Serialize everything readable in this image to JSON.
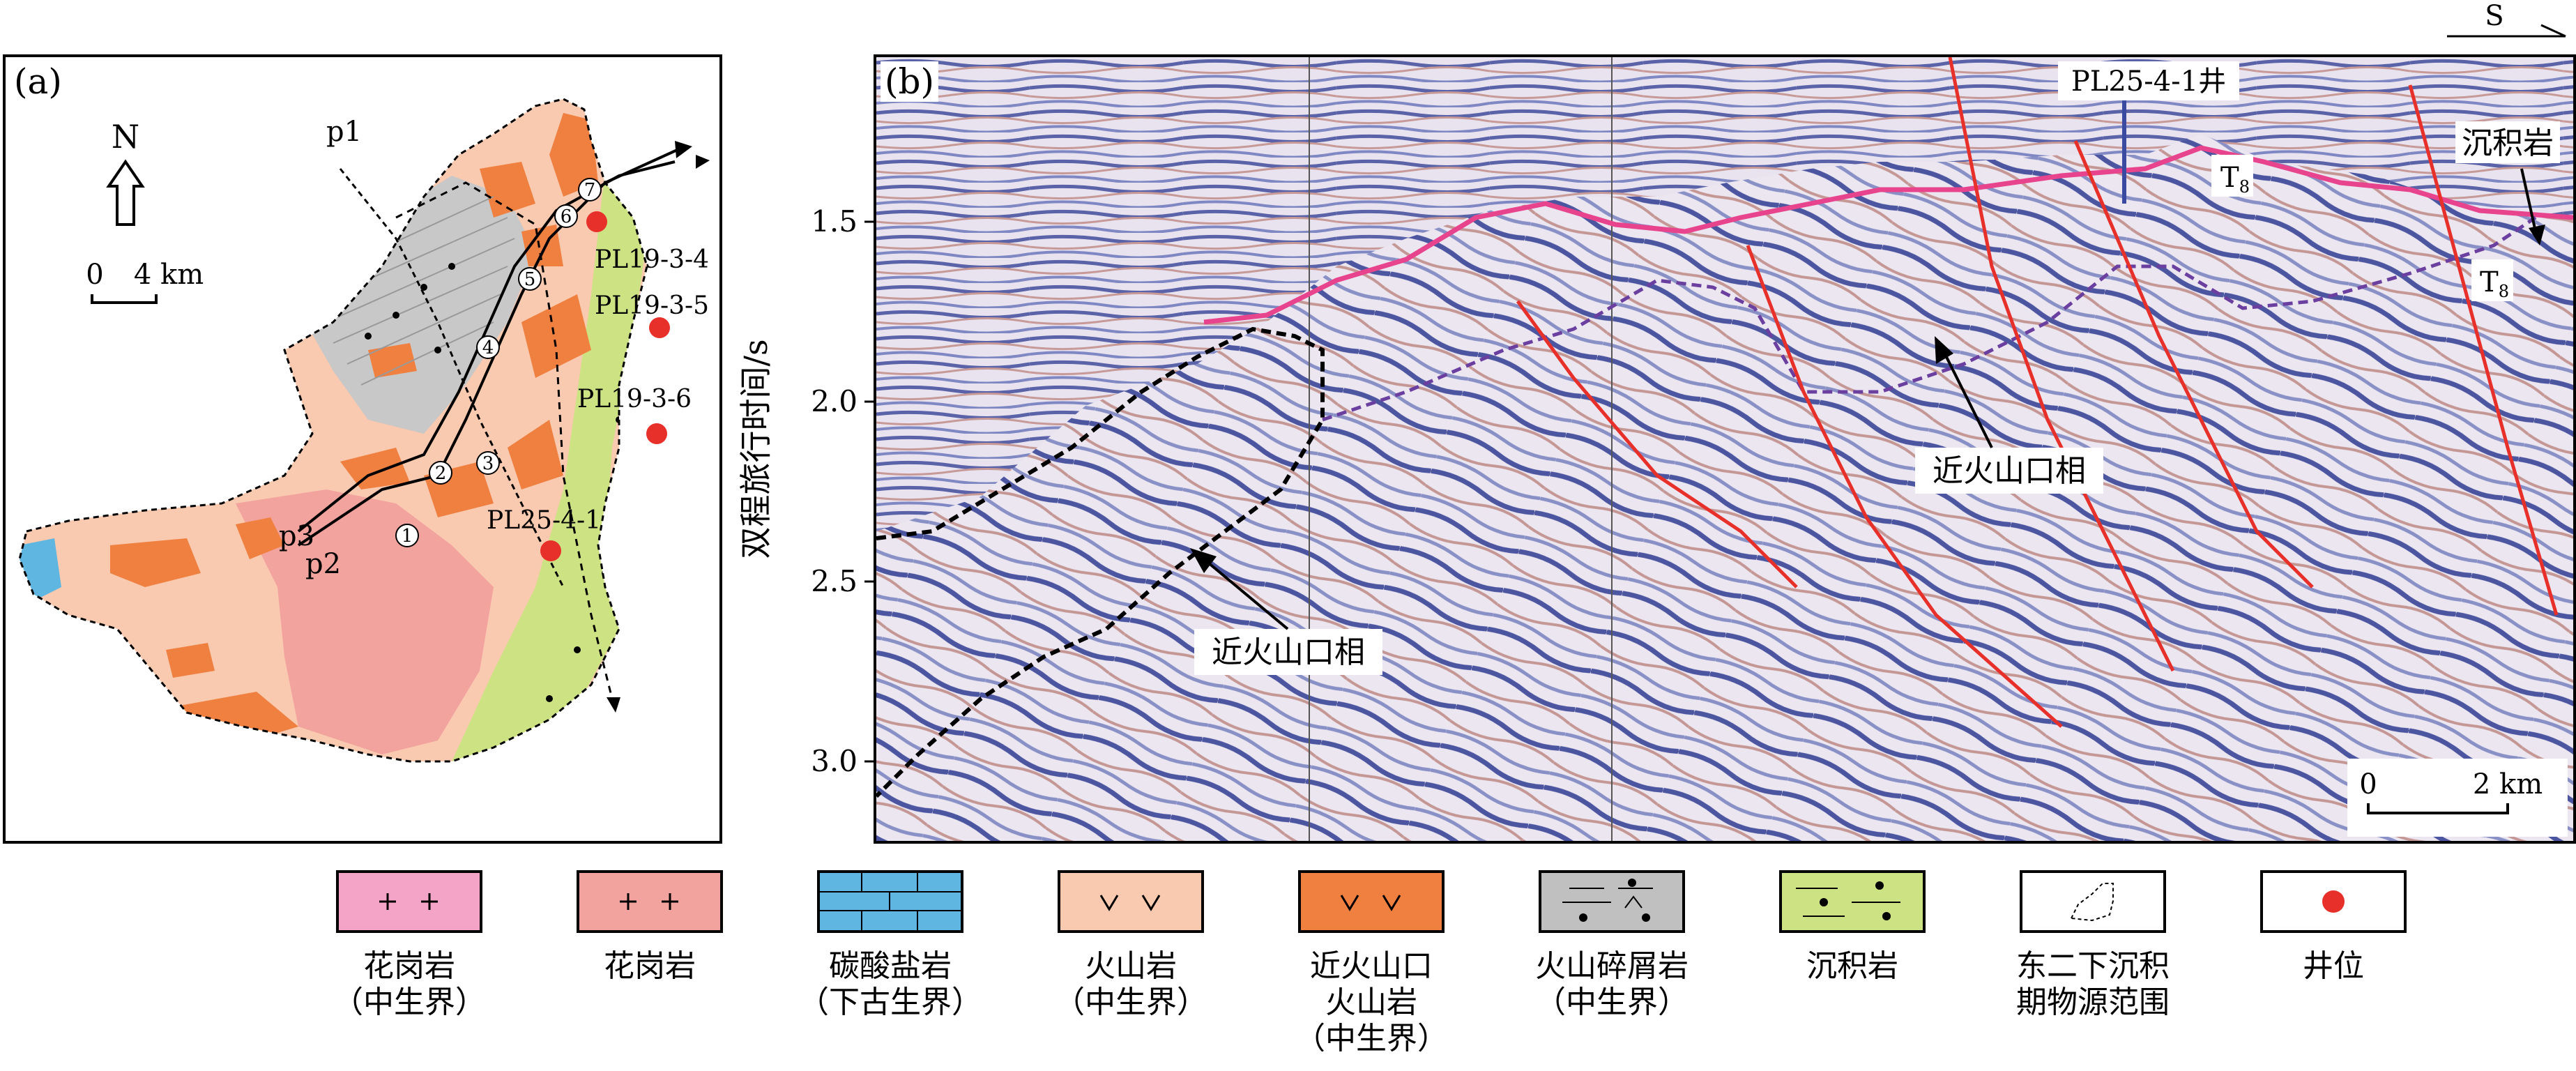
{
  "panel_a": {
    "label": "(a)",
    "north": "N",
    "scale": {
      "zero": "0",
      "end": "4 km"
    },
    "profiles": [
      "p1",
      "p2",
      "p3"
    ],
    "points": [
      "1",
      "2",
      "3",
      "4",
      "5",
      "6",
      "7"
    ],
    "wells": [
      "PL19-3-4",
      "PL19-3-5",
      "PL19-3-6",
      "PL25-4-1"
    ]
  },
  "panel_b": {
    "label": "(b)",
    "direction": "S",
    "ylabel": "双程旅行时间/s",
    "yticks": [
      "1.5",
      "2.0",
      "2.5",
      "3.0"
    ],
    "well": "PL25-4-1井",
    "horizon_main": "T",
    "horizon_sub": "8",
    "horizon2_main": "T",
    "horizon2_sub": "8",
    "label_sed": "沉积岩",
    "label_facies_1": "近火山口相",
    "label_facies_2": "近火山口相",
    "scale": {
      "zero": "0",
      "end": "2 km"
    }
  },
  "legend": [
    {
      "id": "granite-mesozoic",
      "color": "#f4a5c7",
      "lines": [
        "花岗岩",
        "（中生界）"
      ]
    },
    {
      "id": "granite",
      "color": "#f2a39e",
      "lines": [
        "花岗岩"
      ]
    },
    {
      "id": "carbonate",
      "color": "#5fb6e0",
      "lines": [
        "碳酸盐岩",
        "（下古生界）"
      ]
    },
    {
      "id": "volcanic",
      "color": "#f9c9b0",
      "lines": [
        "火山岩",
        "（中生界）"
      ]
    },
    {
      "id": "near-vent-volcanic",
      "color": "#f08040",
      "lines": [
        "近火山口",
        "火山岩",
        "（中生界）"
      ]
    },
    {
      "id": "volcaniclastic",
      "color": "#c0c0c0",
      "lines": [
        "火山碎屑岩",
        "（中生界）"
      ]
    },
    {
      "id": "sedimentary",
      "color": "#cde383",
      "lines": [
        "沉积岩"
      ]
    },
    {
      "id": "provenance",
      "color": "#ffffff",
      "lines": [
        "东二下沉积",
        "期物源范围"
      ]
    },
    {
      "id": "well",
      "color": "#e8302a",
      "lines": [
        "井位"
      ]
    }
  ]
}
